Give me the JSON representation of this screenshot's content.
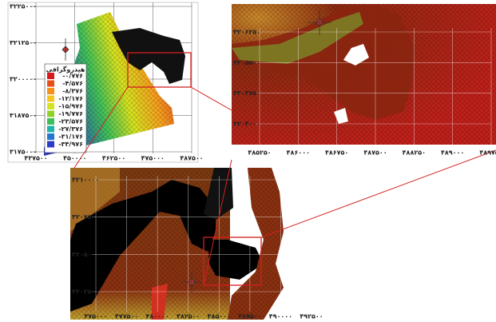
{
  "panels": [
    {
      "name": "overview",
      "yticks": [
        "۳۲۲۵۰۰۰",
        "۳۲۱۲۵۰۰",
        "۳۲۰۰۰۰۰",
        "۳۱۸۷۵۰۰",
        "۳۱۷۵۰۰۰"
      ],
      "xticks": [
        "۴۳۷۵۰۰",
        "۴۵۰۰۰۰",
        "۴۶۲۵۰۰",
        "۴۷۵۰۰۰",
        "۴۸۷۵۰۰"
      ]
    },
    {
      "name": "detail",
      "yticks": [
        "۳۲۰۶۲۵۰",
        "۳۲۰۵۵۰۰",
        "۳۲۰۴۷۵۰",
        "۳۲۰۴۰۰۰"
      ],
      "xticks": [
        "۴۸۵۲۵۰",
        "۴۸۶۰۰۰",
        "۴۸۶۷۵۰",
        "۴۸۷۵۰۰",
        "۴۸۸۲۵۰",
        "۴۸۹۰۰۰",
        "۴۸۹۷۵۰"
      ]
    },
    {
      "name": "zoom",
      "yticks": [
        "۳۲۱۰۰۰۰",
        "۳۲۰۷۵۰۰",
        "۳۲۰۵۰۰۰",
        "۳۲۰۲۵۰۰"
      ],
      "xticks": [
        "۴۷۵۰۰۰",
        "۴۷۷۵۰۰",
        "۴۸۰۰۰۰",
        "۴۸۲۵۰۰",
        "۴۸۵۰۰۰",
        "۴۸۷۵۰۰",
        "۴۹۰۰۰۰",
        "۴۹۲۵۰۰"
      ]
    }
  ],
  "legend": {
    "title": "هیدروگرافی",
    "items": [
      {
        "label": "-۰/۷۷۶",
        "color": "#d7191c"
      },
      {
        "label": "-۴/۵۷۶",
        "color": "#e8501a"
      },
      {
        "label": "-۸/۳۷۶",
        "color": "#f5901e"
      },
      {
        "label": "-۱۲/۱۷۶",
        "color": "#f7c520"
      },
      {
        "label": "-۱۵/۹۷۶",
        "color": "#d5e21f"
      },
      {
        "label": "-۱۹/۷۷۶",
        "color": "#8fd12b"
      },
      {
        "label": "-۲۳/۵۷۶",
        "color": "#3fbf5a"
      },
      {
        "label": "-۲۷/۳۷۶",
        "color": "#1fb5a8"
      },
      {
        "label": "-۳۱/۱۷۶",
        "color": "#2377d0"
      },
      {
        "label": "-۳۴/۹۷۶",
        "color": "#2b3cc9"
      }
    ]
  }
}
